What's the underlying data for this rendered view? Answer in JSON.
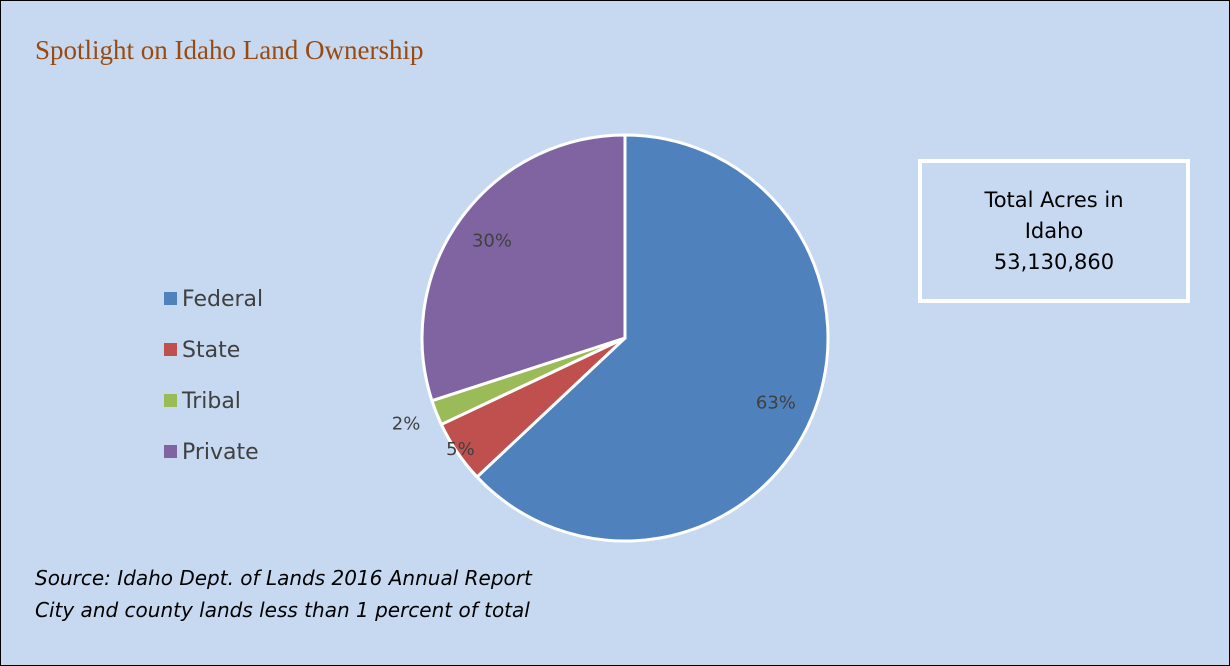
{
  "chart_data": {
    "type": "pie",
    "title": "Spotlight on Idaho Land Ownership",
    "categories": [
      "Federal",
      "State",
      "Tribal",
      "Private"
    ],
    "values": [
      63,
      5,
      2,
      30
    ],
    "value_labels": [
      "63%",
      "5%",
      "2%",
      "30%"
    ],
    "colors": [
      "#4f81bd",
      "#c0504d",
      "#9bbb59",
      "#8064a2"
    ],
    "legend": "left",
    "annotations": {
      "total_label": "Total Acres in Idaho",
      "total_value": "53,130,860"
    },
    "notes": [
      "Source: Idaho Dept. of Lands 2016 Annual Report",
      "City and county lands less than 1 percent of total"
    ]
  }
}
